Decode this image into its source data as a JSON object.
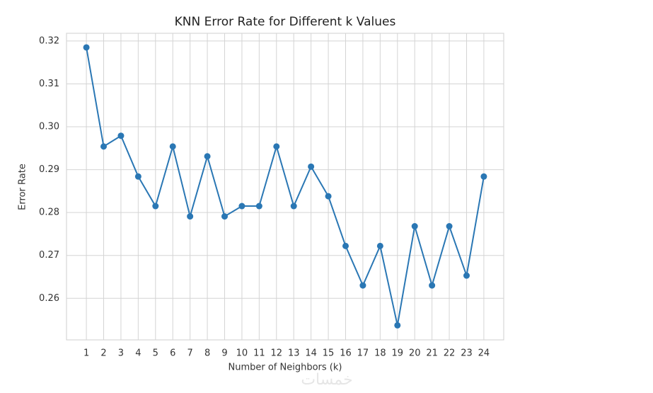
{
  "chart_data": {
    "type": "line",
    "title": "KNN Error Rate for Different k Values",
    "x_label": "Number of Neighbors (k)",
    "y_label": "Error Rate",
    "x": [
      1,
      2,
      3,
      4,
      5,
      6,
      7,
      8,
      9,
      10,
      11,
      12,
      13,
      14,
      15,
      16,
      17,
      18,
      19,
      20,
      21,
      22,
      23,
      24
    ],
    "series": [
      {
        "name": "Error Rate",
        "color": "#2a77b4",
        "values": [
          0.3185,
          0.2954,
          0.2979,
          0.2884,
          0.2815,
          0.2954,
          0.2791,
          0.2931,
          0.2791,
          0.2815,
          0.2815,
          0.2954,
          0.2815,
          0.2907,
          0.2838,
          0.2722,
          0.263,
          0.2722,
          0.2537,
          0.2768,
          0.263,
          0.2768,
          0.2653,
          0.2884
        ]
      }
    ],
    "xlim": [
      -0.15,
      25.15
    ],
    "xticks": [
      1,
      2,
      3,
      4,
      5,
      6,
      7,
      8,
      9,
      10,
      11,
      12,
      13,
      14,
      15,
      16,
      17,
      18,
      19,
      20,
      21,
      22,
      23,
      24
    ],
    "ylim": [
      0.2503,
      0.3218
    ],
    "yticks": [
      0.26,
      0.27,
      0.28,
      0.29,
      {
        "value": 0.3,
        "label": "0.30"
      },
      0.31,
      0.32
    ],
    "grid": true,
    "marker": "o"
  },
  "watermark": "خمسات"
}
